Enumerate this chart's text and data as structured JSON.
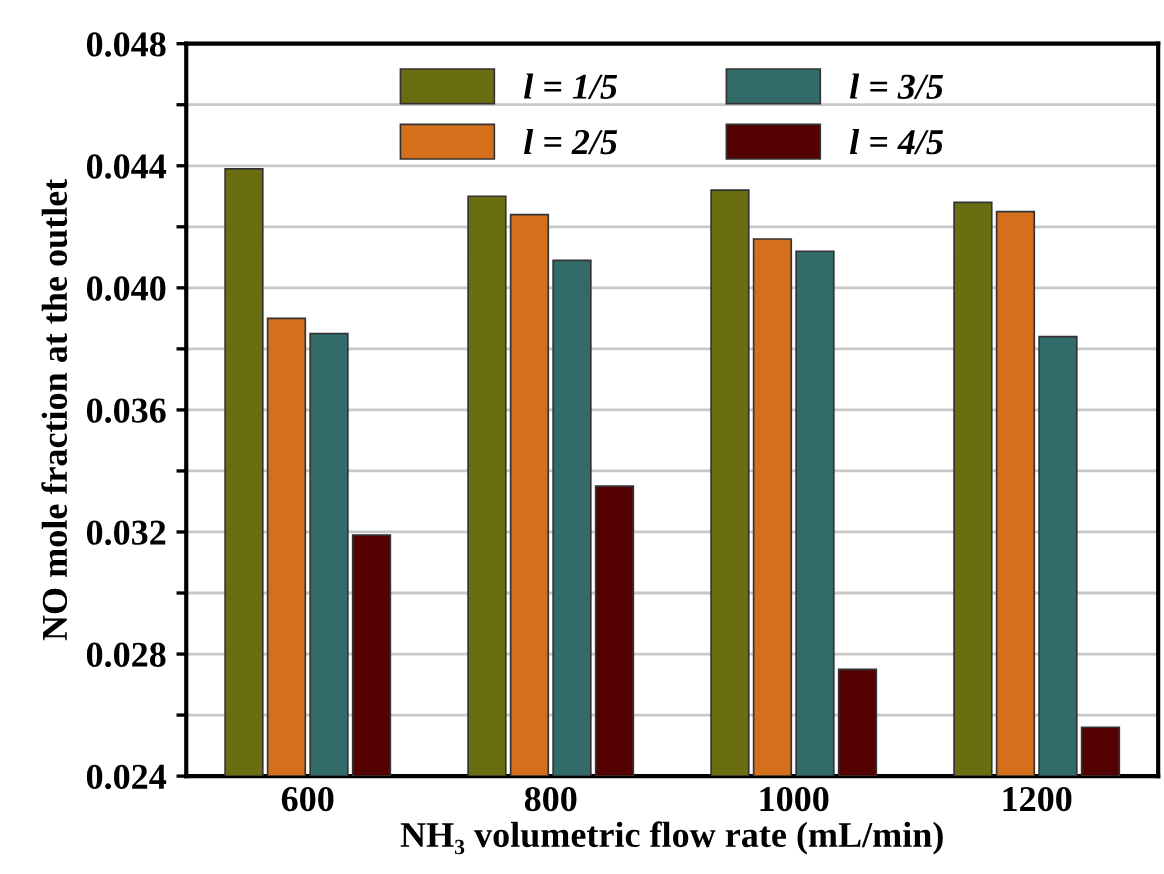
{
  "chart_data": {
    "type": "bar",
    "xlabel": "NH₃ volumetric flow rate (mL/min)",
    "ylabel": "NO mole fraction at the outlet",
    "categories": [
      "600",
      "800",
      "1000",
      "1200"
    ],
    "series": [
      {
        "name": "l = 1/5",
        "color": "#6b6e10",
        "values": [
          0.0439,
          0.043,
          0.0432,
          0.0428
        ]
      },
      {
        "name": "l = 2/5",
        "color": "#d4701c",
        "values": [
          0.039,
          0.0424,
          0.0416,
          0.0425
        ]
      },
      {
        "name": "l = 3/5",
        "color": "#336b6b",
        "values": [
          0.0385,
          0.0409,
          0.0412,
          0.0384
        ]
      },
      {
        "name": "l = 4/5",
        "color": "#520000",
        "values": [
          0.0319,
          0.0335,
          0.0275,
          0.0256
        ]
      }
    ],
    "ylim": [
      0.024,
      0.048
    ],
    "yticks": [
      0.024,
      {
        "value": 0.026,
        "label": null
      },
      0.028,
      {
        "value": 0.03,
        "label": null
      },
      0.032,
      {
        "value": 0.034,
        "label": null
      },
      0.036,
      {
        "value": 0.038,
        "label": null
      },
      {
        "value": 0.04,
        "label": "0.040"
      },
      {
        "value": 0.042,
        "label": null
      },
      0.044,
      {
        "value": 0.046,
        "label": null
      },
      0.048
    ],
    "grid": "y",
    "legend": "top"
  }
}
